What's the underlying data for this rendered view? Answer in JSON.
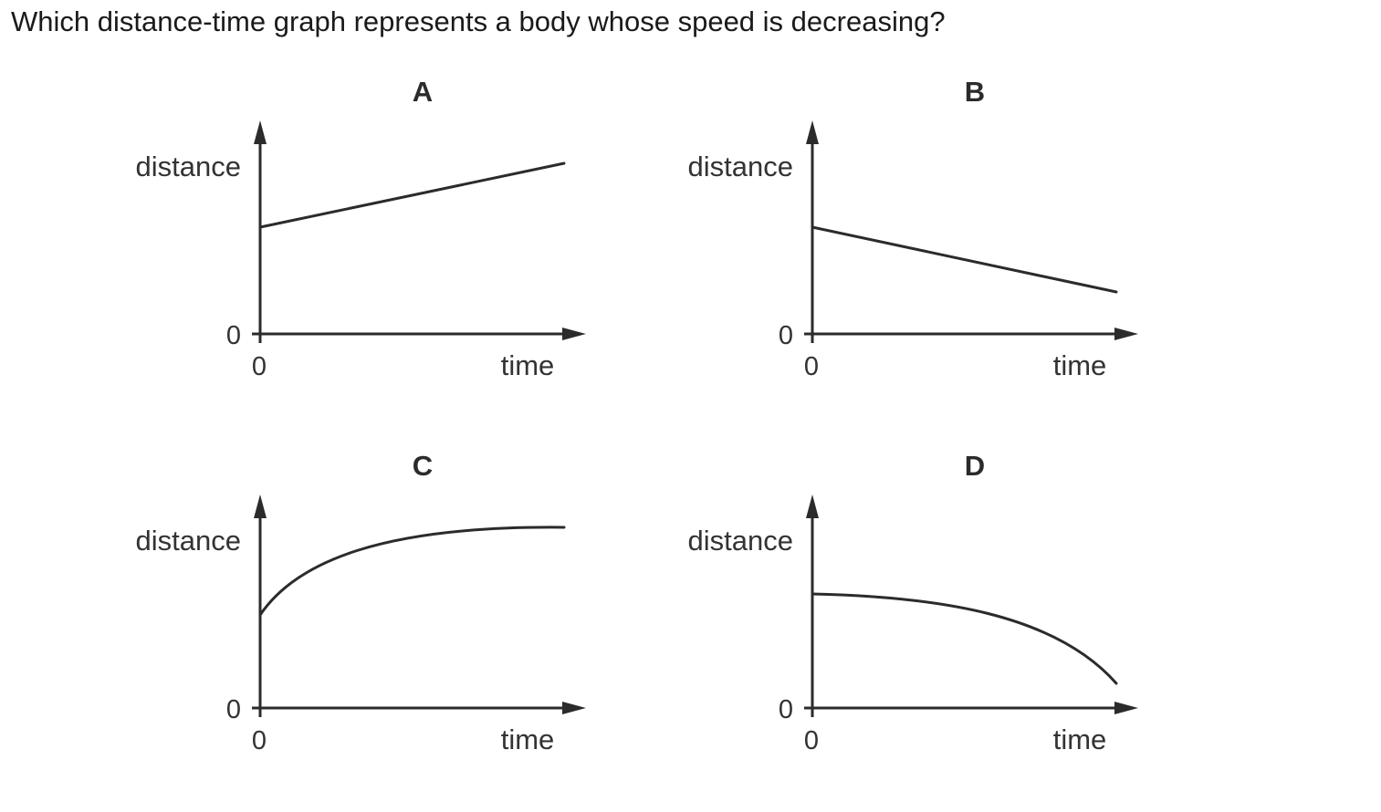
{
  "question": "Which distance-time graph represents a body whose speed is decreasing?",
  "graphs": [
    {
      "label": "A",
      "y_axis_label": "distance",
      "x_axis_label": "time",
      "x_origin_label": "0",
      "y_origin_label": "0",
      "shape": "straight line, constant positive gradient, starts above zero"
    },
    {
      "label": "B",
      "y_axis_label": "distance",
      "x_axis_label": "time",
      "x_origin_label": "0",
      "y_origin_label": "0",
      "shape": "straight line, constant negative gradient, starts above zero"
    },
    {
      "label": "C",
      "y_axis_label": "distance",
      "x_axis_label": "time",
      "x_origin_label": "0",
      "y_origin_label": "0",
      "shape": "curve rising and levelling off (gradient decreasing)"
    },
    {
      "label": "D",
      "y_axis_label": "distance",
      "x_axis_label": "time",
      "x_origin_label": "0",
      "y_origin_label": "0",
      "shape": "curve falling with increasingly steep negative gradient"
    }
  ]
}
